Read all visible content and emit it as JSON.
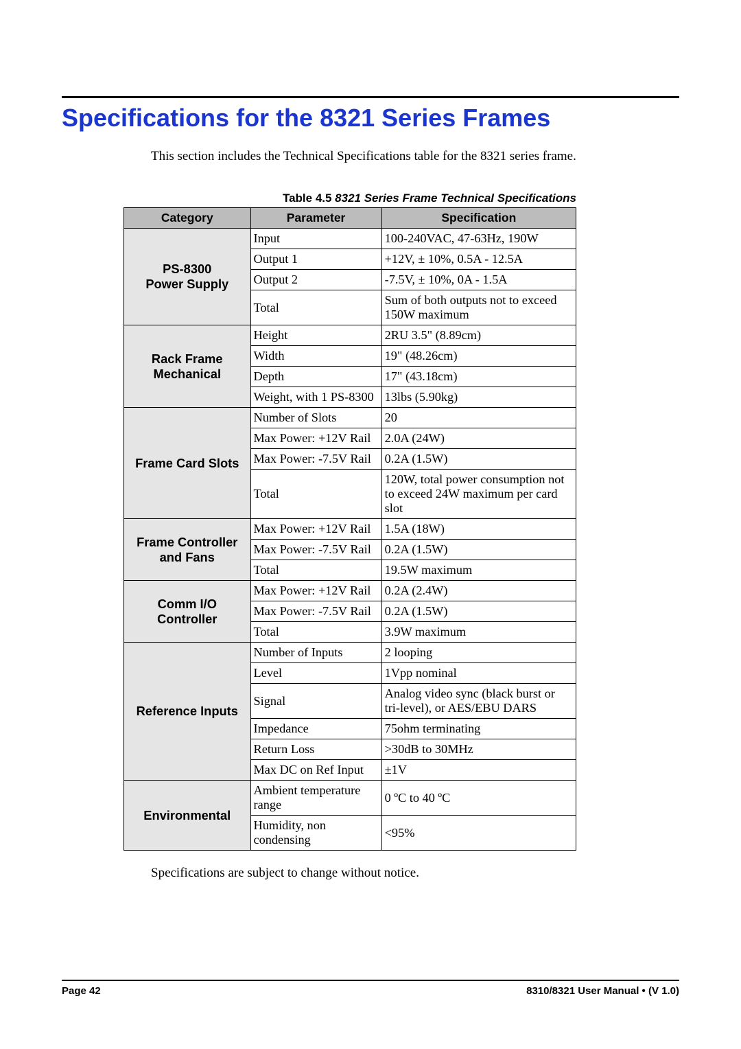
{
  "colors": {
    "title": "#1a36cf",
    "header_bg": "#bcbcbc",
    "cat_bg": "#e5e5e5",
    "border": "#000000",
    "text": "#000000",
    "background": "#ffffff"
  },
  "title": "Specifications for the 8321 Series Frames",
  "intro": "This section includes the Technical Specifications table for the 8321 series frame.",
  "caption_prefix": "Table 4.5",
  "caption_rest": "  8321 Series Frame  Technical Specifications",
  "columns": [
    "Category",
    "Parameter",
    "Specification"
  ],
  "groups": [
    {
      "category": "PS-8300\nPower Supply",
      "rows": [
        {
          "param": "Input",
          "spec": "100-240VAC, 47-63Hz, 190W"
        },
        {
          "param": "Output 1",
          "spec": "+12V,   ± 10%, 0.5A - 12.5A"
        },
        {
          "param": "Output 2",
          "spec": "-7.5V,   ± 10%, 0A - 1.5A"
        },
        {
          "param": "Total",
          "spec": "Sum of both outputs not to exceed 150W maximum"
        }
      ]
    },
    {
      "category": "Rack Frame\nMechanical",
      "rows": [
        {
          "param": "Height",
          "spec": "2RU 3.5\" (8.89cm)"
        },
        {
          "param": "Width",
          "spec": "19\" (48.26cm)"
        },
        {
          "param": "Depth",
          "spec": "17\" (43.18cm)"
        },
        {
          "param": "Weight, with 1 PS-8300",
          "spec": "13lbs (5.90kg)"
        }
      ]
    },
    {
      "category": "Frame Card Slots",
      "rows": [
        {
          "param": "Number of Slots",
          "spec": "20"
        },
        {
          "param": "Max Power: +12V Rail",
          "spec": "2.0A (24W)"
        },
        {
          "param": "Max Power: -7.5V Rail",
          "spec": "0.2A (1.5W)"
        },
        {
          "param": "Total",
          "spec": "120W, total power consumption not to exceed 24W maximum per card slot"
        }
      ]
    },
    {
      "category": "Frame Controller\nand Fans",
      "rows": [
        {
          "param": "Max Power: +12V Rail",
          "spec": "1.5A (18W)"
        },
        {
          "param": "Max Power: -7.5V Rail",
          "spec": "0.2A (1.5W)"
        },
        {
          "param": "Total",
          "spec": "19.5W maximum"
        }
      ]
    },
    {
      "category": "Comm I/O\nController",
      "rows": [
        {
          "param": "Max Power: +12V Rail",
          "spec": "0.2A (2.4W)"
        },
        {
          "param": "Max Power: -7.5V Rail",
          "spec": "0.2A (1.5W)"
        },
        {
          "param": "Total",
          "spec": "3.9W maximum"
        }
      ]
    },
    {
      "category": "Reference Inputs",
      "rows": [
        {
          "param": "Number of Inputs",
          "spec": "2 looping"
        },
        {
          "param": "Level",
          "spec": "1Vpp nominal"
        },
        {
          "param": "Signal",
          "spec": "Analog video sync (black burst or tri-level), or AES/EBU DARS"
        },
        {
          "param": "Impedance",
          "spec": "75ohm terminating"
        },
        {
          "param": "Return Loss",
          "spec": ">30dB to 30MHz"
        },
        {
          "param": "Max DC on Ref Input",
          "spec": "±1V"
        }
      ]
    },
    {
      "category": "Environmental",
      "rows": [
        {
          "param": "Ambient temperature range",
          "spec": "0 ºC to 40 ºC"
        },
        {
          "param": "Humidity, non condensing",
          "spec": "<95%"
        }
      ]
    }
  ],
  "after_note": "Specifications are subject to change without notice.",
  "footer": {
    "left": "Page 42",
    "right": "8310/8321 User Manual • (V 1.0)"
  }
}
